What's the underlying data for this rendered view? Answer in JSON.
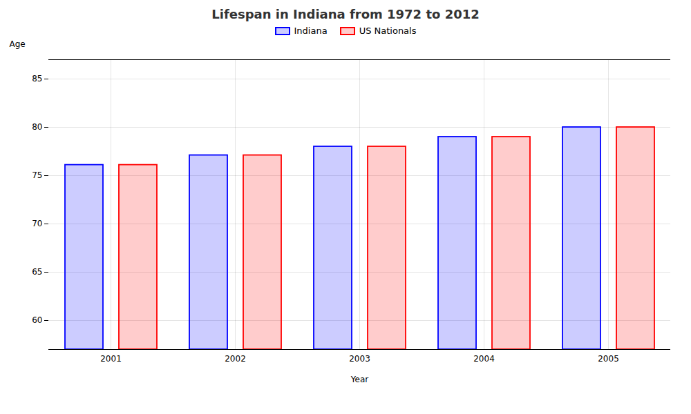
{
  "chart_data": {
    "type": "bar",
    "title": "Lifespan in Indiana from 1972 to 2012",
    "xlabel": "Year",
    "ylabel": "Age",
    "categories": [
      "2001",
      "2002",
      "2003",
      "2004",
      "2005"
    ],
    "series": [
      {
        "name": "Indiana",
        "color": "#0000ff",
        "values": [
          76.1,
          77.1,
          78.0,
          79.0,
          80.0
        ]
      },
      {
        "name": "US Nationals",
        "color": "#ff0000",
        "values": [
          76.1,
          77.1,
          78.0,
          79.0,
          80.0
        ]
      }
    ],
    "ylim": [
      57,
      87
    ],
    "yticks": [
      60,
      65,
      70,
      75,
      80,
      85
    ],
    "grid": true,
    "legend": "top"
  }
}
